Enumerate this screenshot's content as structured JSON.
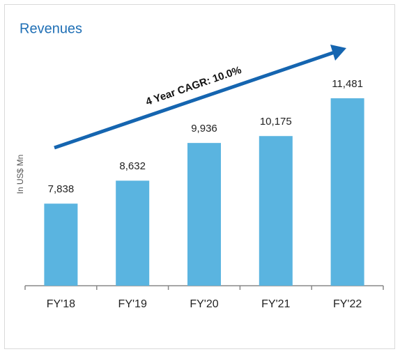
{
  "chart_data": {
    "type": "bar",
    "title": "Revenues",
    "y_label": "In US$ Mn",
    "annotation": "4 Year CAGR: 10.0%",
    "categories": [
      "FY'18",
      "FY'19",
      "FY'20",
      "FY'21",
      "FY'22"
    ],
    "values": [
      7838,
      8632,
      9936,
      10175,
      11481
    ],
    "value_labels": [
      "7,838",
      "8,632",
      "9,936",
      "10,175",
      "11,481"
    ],
    "color": "#5ab4e0",
    "ylim": [
      5000,
      13000
    ],
    "grid": false
  }
}
